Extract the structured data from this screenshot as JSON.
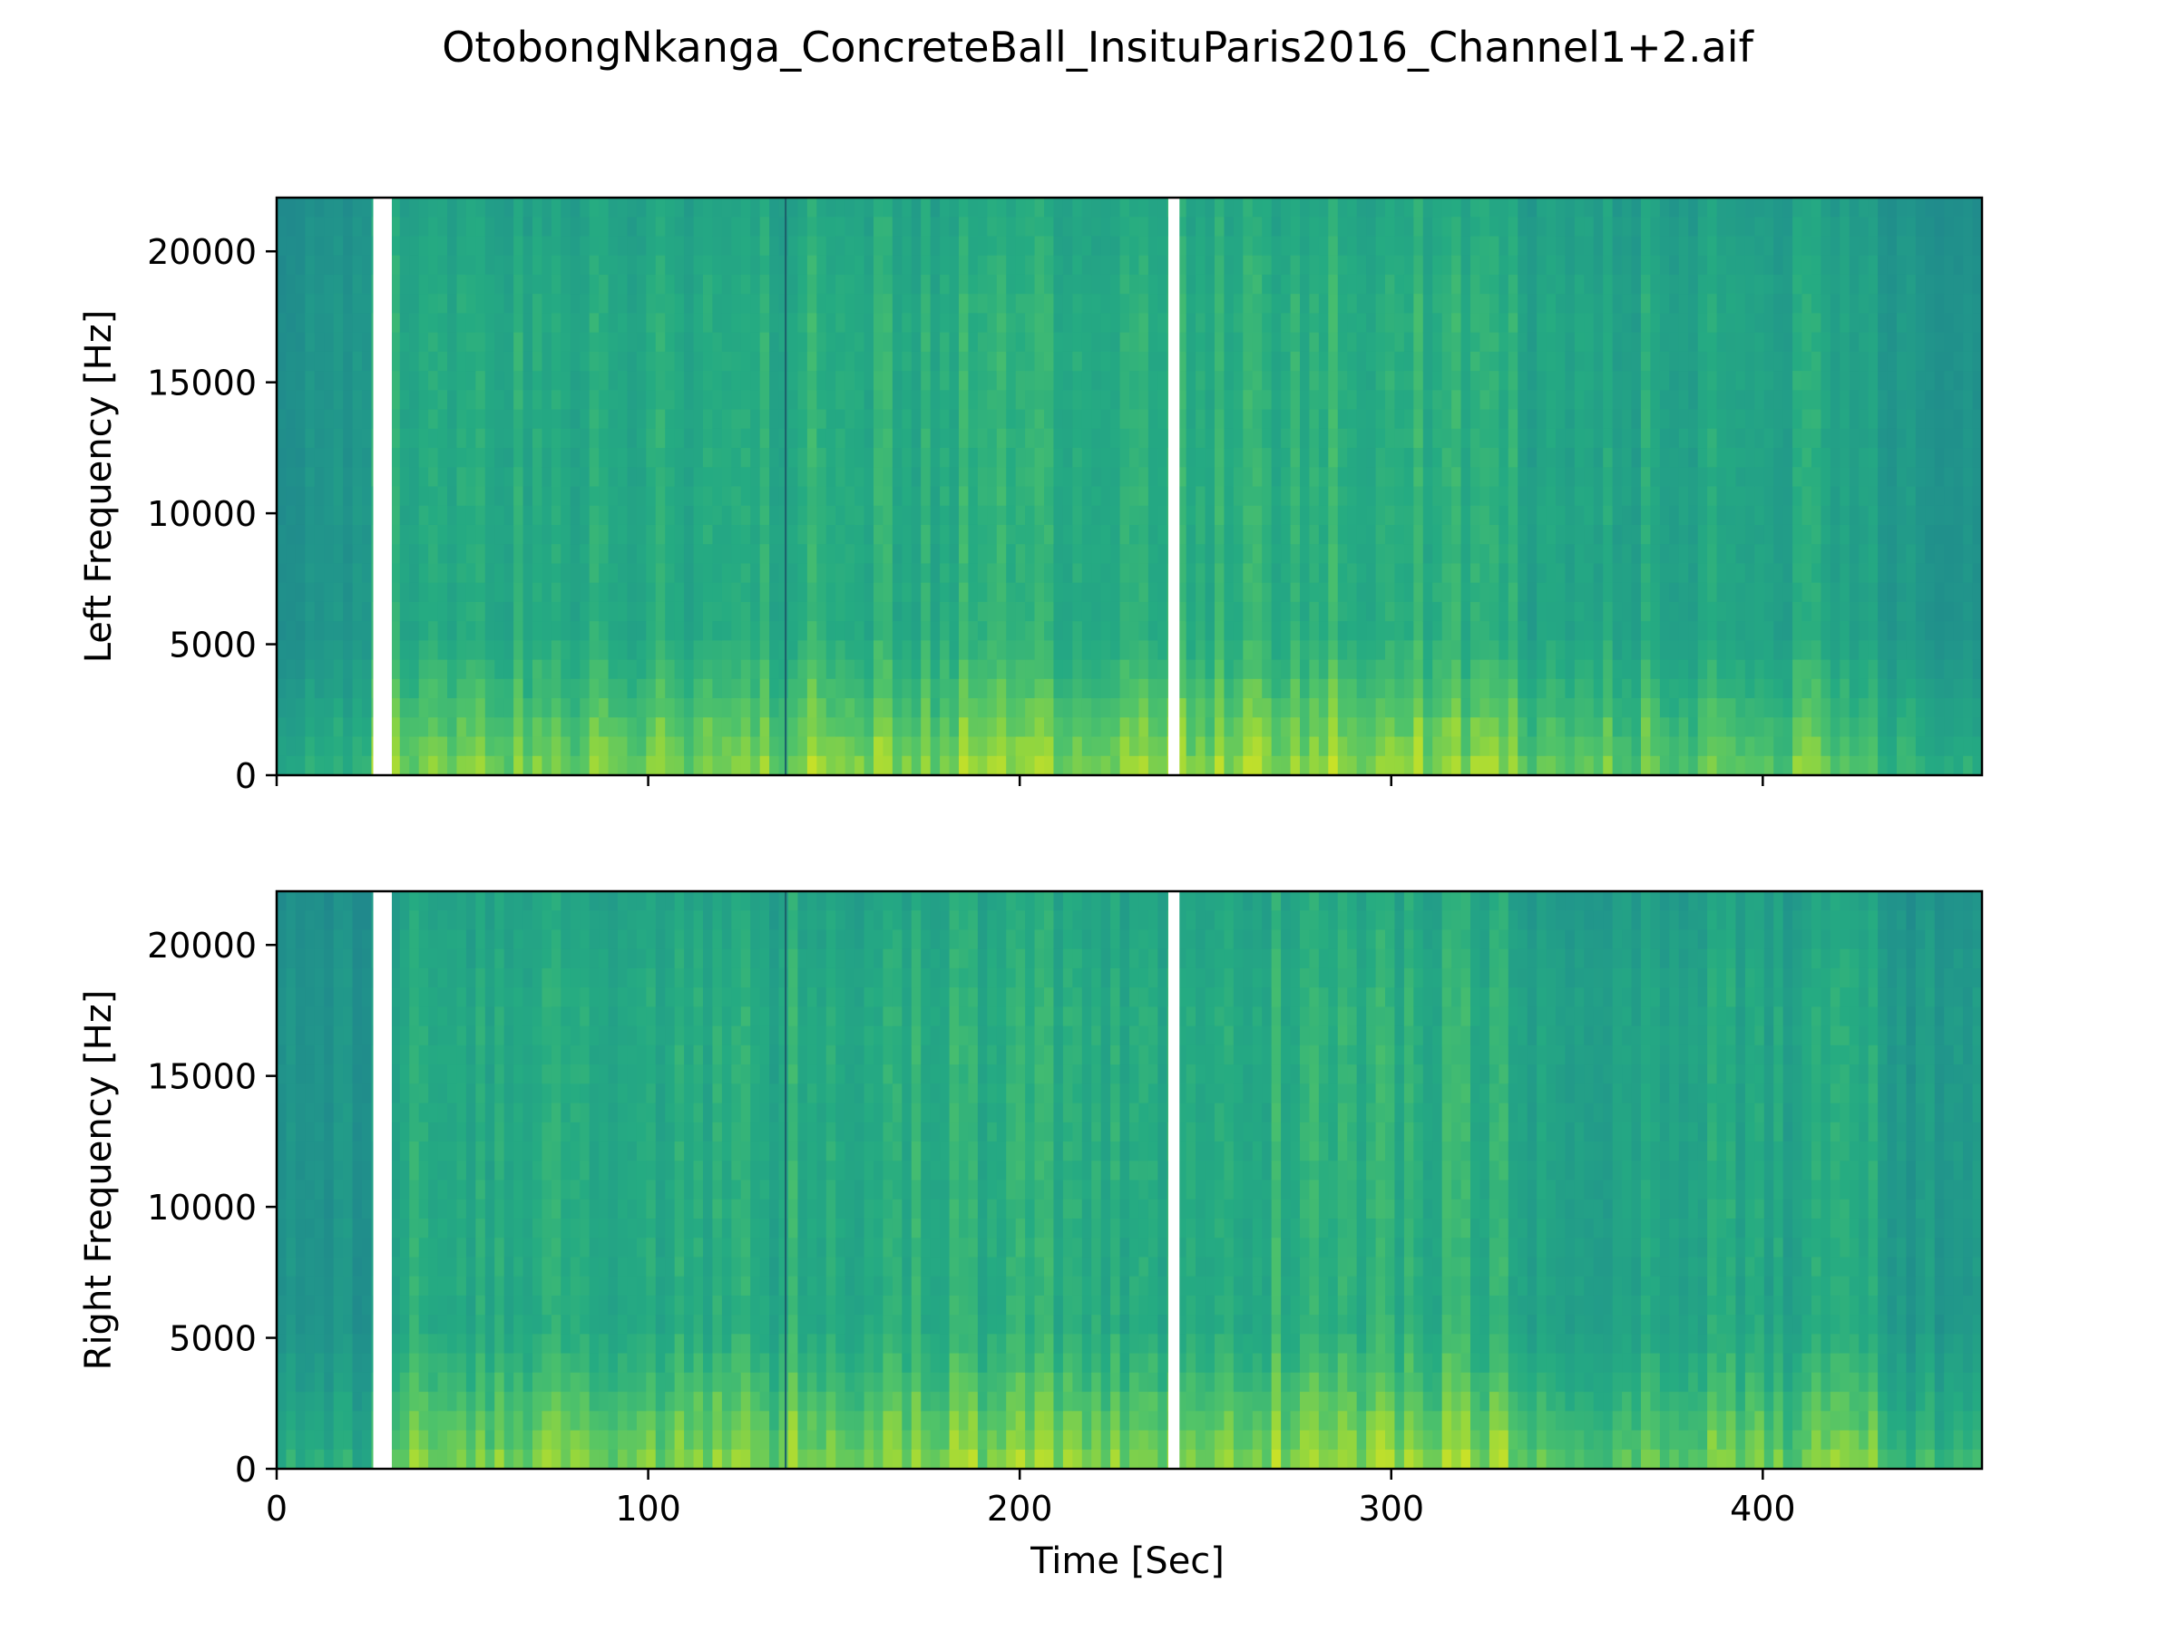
{
  "chart_data": {
    "type": "heatmap",
    "title": "OtobongNkanga_ConcreteBall_InsituParis2016_Channel1+2.aif",
    "xlabel": "Time [Sec]",
    "xlim": [
      0,
      459
    ],
    "x_ticks": [
      0,
      100,
      200,
      300,
      400
    ],
    "x_tick_labels": [
      "0",
      "100",
      "200",
      "300",
      "400"
    ],
    "colormap": "viridis (green-yellow range shown)",
    "colors": {
      "dark": "#1f8a8c",
      "mid": "#25ab82",
      "bright": "#b6de2b",
      "gap": "#ffffff"
    },
    "gaps_sec": [
      [
        26,
        31
      ],
      [
        240,
        243
      ]
    ],
    "panels": [
      {
        "channel": "left",
        "ylabel": "Left Frequency [Hz]",
        "ylim": [
          0,
          22050
        ],
        "y_ticks": [
          0,
          5000,
          10000,
          15000,
          20000
        ],
        "y_tick_labels": [
          "0",
          "5000",
          "10000",
          "15000",
          "20000"
        ]
      },
      {
        "channel": "right",
        "ylabel": "Right Frequency [Hz]",
        "ylim": [
          0,
          22050
        ],
        "y_ticks": [
          0,
          5000,
          10000,
          15000,
          20000
        ],
        "y_tick_labels": [
          "0",
          "5000",
          "10000",
          "15000",
          "20000"
        ]
      }
    ]
  }
}
